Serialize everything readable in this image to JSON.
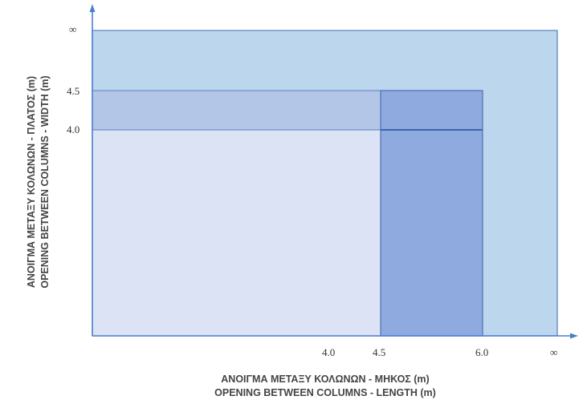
{
  "x_axis": {
    "title_line1": "ΑΝΟΙΓΜΑ ΜΕΤΑΞΥ ΚΟΛΩΝΩΝ - ΜΗΚΟΣ (m)",
    "title_line2": "OPENING BETWEEN COLUMNS - LENGTH (m)",
    "ticks": [
      "4.0",
      "4.5",
      "6.0",
      "∞"
    ]
  },
  "y_axis": {
    "title_line1": "ΑΝΟΙΓΜΑ ΜΕΤΑΞΥ ΚΟΛΩΝΩΝ - ΠΛΑΤΟΣ (m)",
    "title_line2": "OPENING BETWEEN COLUMNS - WIDTH (m)",
    "ticks": [
      "∞",
      "4.5",
      "4.0"
    ]
  },
  "colors": {
    "axis": "#4a7fcf",
    "outer_region": "#bcd6ee",
    "band_region": "#b3c6e8",
    "inner_region": "#dbe3f4",
    "column_region": "#8eaade",
    "border": "#5b7fbf",
    "divider": "#3f62a8"
  }
}
